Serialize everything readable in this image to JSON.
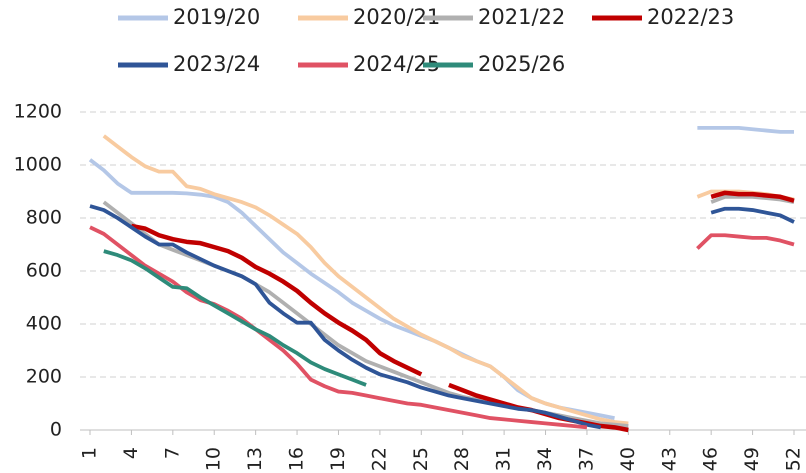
{
  "chart_data": {
    "type": "line",
    "x": [
      1,
      2,
      3,
      4,
      5,
      6,
      7,
      8,
      9,
      10,
      11,
      12,
      13,
      14,
      15,
      16,
      17,
      18,
      19,
      20,
      21,
      22,
      23,
      24,
      25,
      26,
      27,
      28,
      29,
      30,
      31,
      32,
      33,
      34,
      35,
      36,
      37,
      38,
      39,
      40,
      41,
      42,
      43,
      44,
      45,
      46,
      47,
      48,
      49,
      50,
      51,
      52
    ],
    "xlim": [
      1,
      52
    ],
    "xticks": [
      1,
      4,
      7,
      10,
      13,
      16,
      19,
      22,
      25,
      28,
      31,
      34,
      37,
      40,
      43,
      46,
      49,
      52
    ],
    "ylim": [
      0,
      1200
    ],
    "yticks": [
      0,
      200,
      400,
      600,
      800,
      1000,
      1200
    ],
    "grid": true,
    "legend": "top",
    "series": [
      {
        "name": "2019/20",
        "color": "#b4c7e7",
        "values": [
          1020,
          980,
          930,
          895,
          895,
          895,
          895,
          893,
          888,
          880,
          860,
          820,
          770,
          720,
          670,
          630,
          590,
          555,
          520,
          480,
          450,
          420,
          395,
          375,
          355,
          335,
          310,
          285,
          260,
          240,
          200,
          150,
          120,
          100,
          85,
          75,
          65,
          55,
          45,
          null,
          null,
          null,
          null,
          null,
          1140,
          1140,
          1140,
          1140,
          1135,
          1130,
          1125,
          1125
        ]
      },
      {
        "name": "2020/21",
        "color": "#f8cba0",
        "values": [
          null,
          1110,
          1070,
          1030,
          995,
          975,
          975,
          920,
          910,
          890,
          875,
          860,
          840,
          810,
          775,
          740,
          690,
          630,
          580,
          540,
          500,
          460,
          420,
          390,
          360,
          335,
          310,
          280,
          260,
          240,
          200,
          160,
          120,
          100,
          85,
          70,
          55,
          40,
          30,
          25,
          null,
          null,
          null,
          null,
          880,
          900,
          900,
          900,
          895,
          890,
          880,
          870
        ]
      },
      {
        "name": "2021/22",
        "color": "#b0b0b0",
        "values": [
          null,
          860,
          820,
          780,
          740,
          700,
          680,
          660,
          640,
          620,
          600,
          580,
          550,
          520,
          480,
          440,
          400,
          360,
          320,
          290,
          260,
          240,
          220,
          200,
          180,
          160,
          140,
          125,
          115,
          105,
          95,
          85,
          75,
          65,
          55,
          45,
          35,
          25,
          20,
          15,
          null,
          null,
          null,
          null,
          null,
          860,
          880,
          880,
          880,
          875,
          870,
          860
        ]
      },
      {
        "name": "2022/23",
        "color": "#c00000",
        "values": [
          null,
          null,
          null,
          770,
          760,
          735,
          720,
          710,
          705,
          690,
          675,
          650,
          615,
          590,
          560,
          525,
          480,
          440,
          405,
          375,
          340,
          290,
          260,
          235,
          210,
          null,
          170,
          150,
          130,
          115,
          100,
          85,
          75,
          60,
          45,
          35,
          25,
          15,
          10,
          0,
          null,
          null,
          null,
          null,
          null,
          880,
          895,
          890,
          890,
          885,
          880,
          865
        ]
      },
      {
        "name": "2023/24",
        "color": "#2f5597",
        "values": [
          845,
          830,
          800,
          765,
          730,
          700,
          700,
          670,
          645,
          620,
          600,
          580,
          550,
          480,
          440,
          405,
          405,
          340,
          300,
          265,
          235,
          210,
          195,
          180,
          160,
          145,
          130,
          120,
          110,
          100,
          90,
          80,
          75,
          65,
          50,
          35,
          20,
          10,
          null,
          null,
          null,
          null,
          null,
          null,
          null,
          820,
          835,
          835,
          830,
          820,
          810,
          785
        ]
      },
      {
        "name": "2024/25",
        "color": "#e05264",
        "values": [
          765,
          740,
          700,
          660,
          620,
          590,
          560,
          520,
          490,
          475,
          450,
          420,
          380,
          340,
          300,
          250,
          190,
          165,
          145,
          140,
          130,
          120,
          110,
          100,
          95,
          85,
          75,
          65,
          55,
          45,
          40,
          35,
          30,
          25,
          20,
          15,
          10,
          null,
          null,
          null,
          null,
          null,
          null,
          null,
          685,
          735,
          735,
          730,
          725,
          725,
          715,
          700
        ]
      },
      {
        "name": "2025/26",
        "color": "#2e8b7a",
        "values": [
          null,
          675,
          660,
          640,
          610,
          575,
          540,
          535,
          500,
          470,
          440,
          410,
          380,
          355,
          320,
          290,
          255,
          230,
          210,
          190,
          170,
          null,
          null,
          null,
          null,
          null,
          null,
          null,
          null,
          null,
          null,
          null,
          null,
          null,
          null,
          null,
          null,
          null,
          null,
          null,
          null,
          null,
          null,
          null,
          null,
          null,
          null,
          null,
          null,
          null,
          null,
          null
        ]
      }
    ]
  }
}
